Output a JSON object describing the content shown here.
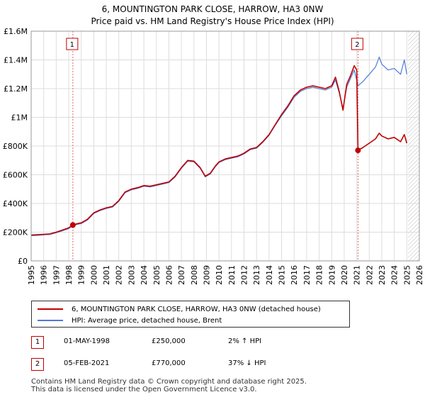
{
  "chart_data": {
    "type": "line",
    "title": "6, MOUNTINGTON PARK CLOSE, HARROW, HA3 0NW",
    "subtitle": "Price paid vs. HM Land Registry's House Price Index (HPI)",
    "xlim": [
      1995,
      2026
    ],
    "ylim": [
      0,
      1600000
    ],
    "x_ticks": [
      1995,
      1996,
      1997,
      1998,
      1999,
      2000,
      2001,
      2002,
      2003,
      2004,
      2005,
      2006,
      2007,
      2008,
      2009,
      2010,
      2011,
      2012,
      2013,
      2014,
      2015,
      2016,
      2017,
      2018,
      2019,
      2020,
      2021,
      2022,
      2023,
      2024,
      2025,
      2026
    ],
    "y_ticks": [
      {
        "value": 0,
        "label": "£0"
      },
      {
        "value": 200000,
        "label": "£200K"
      },
      {
        "value": 400000,
        "label": "£400K"
      },
      {
        "value": 600000,
        "label": "£600K"
      },
      {
        "value": 800000,
        "label": "£800K"
      },
      {
        "value": 1000000,
        "label": "£1M"
      },
      {
        "value": 1200000,
        "label": "£1.2M"
      },
      {
        "value": 1400000,
        "label": "£1.4M"
      },
      {
        "value": 1600000,
        "label": "£1.6M"
      }
    ],
    "grid": true,
    "series": [
      {
        "name": "6, MOUNTINGTON PARK CLOSE, HARROW, HA3 0NW (detached house)",
        "color": "#c00000",
        "x": [
          1995.0,
          1995.5,
          1996.0,
          1996.5,
          1997.0,
          1997.5,
          1998.0,
          1998.33,
          1998.7,
          1999.0,
          1999.5,
          2000.0,
          2000.5,
          2001.0,
          2001.5,
          2002.0,
          2002.5,
          2003.0,
          2003.5,
          2004.0,
          2004.5,
          2005.0,
          2005.5,
          2006.0,
          2006.5,
          2007.0,
          2007.5,
          2008.0,
          2008.5,
          2008.9,
          2009.3,
          2009.7,
          2010.0,
          2010.5,
          2011.0,
          2011.5,
          2012.0,
          2012.5,
          2013.0,
          2013.5,
          2014.0,
          2014.5,
          2015.0,
          2015.5,
          2016.0,
          2016.5,
          2017.0,
          2017.5,
          2018.0,
          2018.5,
          2019.0,
          2019.3,
          2019.6,
          2019.9,
          2020.2,
          2020.5,
          2020.8,
          2021.0,
          2021.1
        ],
        "y": [
          180000,
          182000,
          185000,
          188000,
          200000,
          215000,
          230000,
          250000,
          260000,
          265000,
          290000,
          335000,
          355000,
          370000,
          380000,
          420000,
          480000,
          500000,
          510000,
          525000,
          520000,
          530000,
          540000,
          550000,
          590000,
          650000,
          700000,
          695000,
          650000,
          590000,
          610000,
          660000,
          690000,
          710000,
          720000,
          730000,
          750000,
          780000,
          790000,
          830000,
          880000,
          950000,
          1020000,
          1080000,
          1150000,
          1190000,
          1210000,
          1220000,
          1210000,
          1200000,
          1220000,
          1280000,
          1180000,
          1050000,
          1230000,
          1290000,
          1360000,
          1330000,
          770000
        ]
      },
      {
        "name": "6, MOUNTINGTON PARK CLOSE, HARROW, HA3 0NW (detached house)",
        "color": "#c00000",
        "x": [
          2021.1,
          2021.5,
          2022.0,
          2022.5,
          2022.8,
          2023.0,
          2023.5,
          2024.0,
          2024.5,
          2024.8,
          2025.0
        ],
        "y": [
          770000,
          790000,
          820000,
          850000,
          890000,
          870000,
          850000,
          860000,
          830000,
          880000,
          820000
        ]
      },
      {
        "name": "HPI: Average price, detached house, Brent",
        "color": "#4f7ad6",
        "x": [
          1995.0,
          1995.5,
          1996.0,
          1996.5,
          1997.0,
          1997.5,
          1998.0,
          1998.33,
          1998.7,
          1999.0,
          1999.5,
          2000.0,
          2000.5,
          2001.0,
          2001.5,
          2002.0,
          2002.5,
          2003.0,
          2003.5,
          2004.0,
          2004.5,
          2005.0,
          2005.5,
          2006.0,
          2006.5,
          2007.0,
          2007.5,
          2008.0,
          2008.5,
          2008.9,
          2009.3,
          2009.7,
          2010.0,
          2010.5,
          2011.0,
          2011.5,
          2012.0,
          2012.5,
          2013.0,
          2013.5,
          2014.0,
          2014.5,
          2015.0,
          2015.5,
          2016.0,
          2016.5,
          2017.0,
          2017.5,
          2018.0,
          2018.5,
          2019.0,
          2019.3,
          2019.6,
          2019.9,
          2020.2,
          2020.5,
          2020.8,
          2021.1,
          2021.5,
          2022.0,
          2022.5,
          2022.8,
          2023.0,
          2023.5,
          2024.0,
          2024.5,
          2024.8,
          2025.0
        ],
        "y": [
          176000,
          178000,
          181000,
          184000,
          196000,
          210000,
          225000,
          245000,
          255000,
          260000,
          285000,
          330000,
          350000,
          365000,
          375000,
          415000,
          475000,
          495000,
          505000,
          520000,
          515000,
          525000,
          535000,
          545000,
          585000,
          645000,
          695000,
          690000,
          645000,
          585000,
          605000,
          655000,
          685000,
          705000,
          715000,
          725000,
          745000,
          775000,
          785000,
          825000,
          875000,
          945000,
          1010000,
          1070000,
          1140000,
          1180000,
          1200000,
          1210000,
          1200000,
          1190000,
          1210000,
          1260000,
          1170000,
          1060000,
          1210000,
          1270000,
          1330000,
          1220000,
          1250000,
          1300000,
          1350000,
          1420000,
          1370000,
          1330000,
          1340000,
          1300000,
          1400000,
          1300000
        ]
      }
    ],
    "transactions": [
      {
        "label": "1",
        "x": 1998.33,
        "y": 250000
      },
      {
        "label": "2",
        "x": 2021.1,
        "y": 770000
      }
    ],
    "legend": {
      "placement": "bottom",
      "entries": [
        {
          "label": "6, MOUNTINGTON PARK CLOSE, HARROW, HA3 0NW (detached house)",
          "color": "#c00000"
        },
        {
          "label": "HPI: Average price, detached house, Brent",
          "color": "#4f7ad6"
        }
      ]
    }
  },
  "transactions_table": [
    {
      "num": "1",
      "date": "01-MAY-1998",
      "price": "£250,000",
      "hpi": "2% ↑ HPI"
    },
    {
      "num": "2",
      "date": "05-FEB-2021",
      "price": "£770,000",
      "hpi": "37% ↓ HPI"
    }
  ],
  "footer": {
    "line1": "Contains HM Land Registry data © Crown copyright and database right 2025.",
    "line2": "This data is licensed under the Open Government Licence v3.0."
  }
}
